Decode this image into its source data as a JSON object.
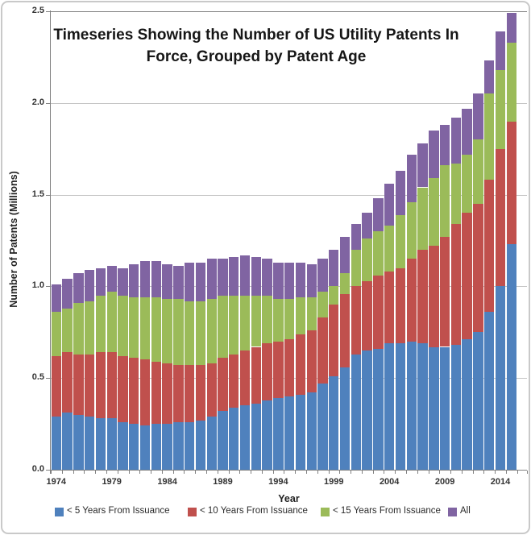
{
  "window": {
    "background": "#ffffff",
    "frame_border_color": "#c9c9c9",
    "axis_color": "#808080",
    "gridline_color": "#c3c3c3"
  },
  "chart_data": {
    "type": "bar",
    "stacked": true,
    "title": "Timeseries Showing the Number of US Utility Patents In Force, Grouped by Patent Age",
    "xlabel": "Year",
    "ylabel": "Number of Patents (Millions)",
    "ylim": [
      0,
      2.5
    ],
    "ytick_labels": [
      "0.0",
      "0.5",
      "1.0",
      "1.5",
      "2.0",
      "2.5"
    ],
    "xtick_labels": [
      "1974",
      "1979",
      "1984",
      "1989",
      "1994",
      "1999",
      "2004",
      "2009",
      "2014"
    ],
    "grid": true,
    "legend_position": "bottom",
    "note": "Stacked segment heights in millions of patents; cumulative boundaries give each age-band curve. Totals = 'All' top of bar.",
    "categories": [
      1974,
      1975,
      1976,
      1977,
      1978,
      1979,
      1980,
      1981,
      1982,
      1983,
      1984,
      1985,
      1986,
      1987,
      1988,
      1989,
      1990,
      1991,
      1992,
      1993,
      1994,
      1995,
      1996,
      1997,
      1998,
      1999,
      2000,
      2001,
      2002,
      2003,
      2004,
      2005,
      2006,
      2007,
      2008,
      2009,
      2010,
      2011,
      2012,
      2013,
      2014,
      2015
    ],
    "series": [
      {
        "name": "< 5 Years From Issuance",
        "color": "#4F81BD",
        "values": [
          0.29,
          0.31,
          0.3,
          0.29,
          0.28,
          0.28,
          0.26,
          0.25,
          0.24,
          0.25,
          0.25,
          0.26,
          0.26,
          0.27,
          0.29,
          0.32,
          0.34,
          0.35,
          0.36,
          0.38,
          0.39,
          0.4,
          0.41,
          0.42,
          0.47,
          0.51,
          0.56,
          0.63,
          0.65,
          0.66,
          0.69,
          0.69,
          0.7,
          0.69,
          0.67,
          0.67,
          0.68,
          0.71,
          0.75,
          0.86,
          1.0,
          1.23
        ]
      },
      {
        "name": "< 10 Years From Issuance",
        "color": "#C0504D",
        "values": [
          0.33,
          0.33,
          0.33,
          0.34,
          0.36,
          0.36,
          0.36,
          0.36,
          0.36,
          0.34,
          0.33,
          0.31,
          0.31,
          0.3,
          0.29,
          0.29,
          0.29,
          0.3,
          0.31,
          0.31,
          0.31,
          0.31,
          0.33,
          0.34,
          0.36,
          0.39,
          0.4,
          0.37,
          0.38,
          0.4,
          0.39,
          0.41,
          0.45,
          0.51,
          0.55,
          0.6,
          0.66,
          0.69,
          0.7,
          0.72,
          0.75,
          0.67
        ]
      },
      {
        "name": "< 15 Years From Issuance",
        "color": "#9BBB59",
        "values": [
          0.24,
          0.24,
          0.28,
          0.29,
          0.31,
          0.33,
          0.33,
          0.33,
          0.34,
          0.35,
          0.35,
          0.36,
          0.35,
          0.35,
          0.35,
          0.34,
          0.32,
          0.3,
          0.28,
          0.26,
          0.23,
          0.22,
          0.2,
          0.18,
          0.14,
          0.1,
          0.11,
          0.2,
          0.23,
          0.24,
          0.25,
          0.29,
          0.31,
          0.34,
          0.37,
          0.39,
          0.33,
          0.32,
          0.35,
          0.47,
          0.43,
          0.43
        ]
      },
      {
        "name": "All",
        "color": "#8064A2",
        "values": [
          0.15,
          0.16,
          0.16,
          0.17,
          0.15,
          0.14,
          0.15,
          0.18,
          0.2,
          0.2,
          0.19,
          0.18,
          0.21,
          0.21,
          0.22,
          0.2,
          0.21,
          0.22,
          0.21,
          0.2,
          0.2,
          0.2,
          0.19,
          0.18,
          0.18,
          0.2,
          0.2,
          0.14,
          0.14,
          0.18,
          0.23,
          0.24,
          0.26,
          0.24,
          0.26,
          0.22,
          0.25,
          0.25,
          0.25,
          0.18,
          0.21,
          0.16
        ]
      }
    ],
    "totals": [
      1.01,
      1.04,
      1.07,
      1.09,
      1.1,
      1.11,
      1.1,
      1.12,
      1.14,
      1.14,
      1.12,
      1.11,
      1.13,
      1.13,
      1.15,
      1.15,
      1.16,
      1.17,
      1.16,
      1.15,
      1.13,
      1.13,
      1.13,
      1.12,
      1.15,
      1.2,
      1.27,
      1.34,
      1.4,
      1.48,
      1.56,
      1.63,
      1.72,
      1.78,
      1.85,
      1.88,
      1.92,
      1.97,
      2.05,
      2.23,
      2.39,
      2.49
    ]
  }
}
